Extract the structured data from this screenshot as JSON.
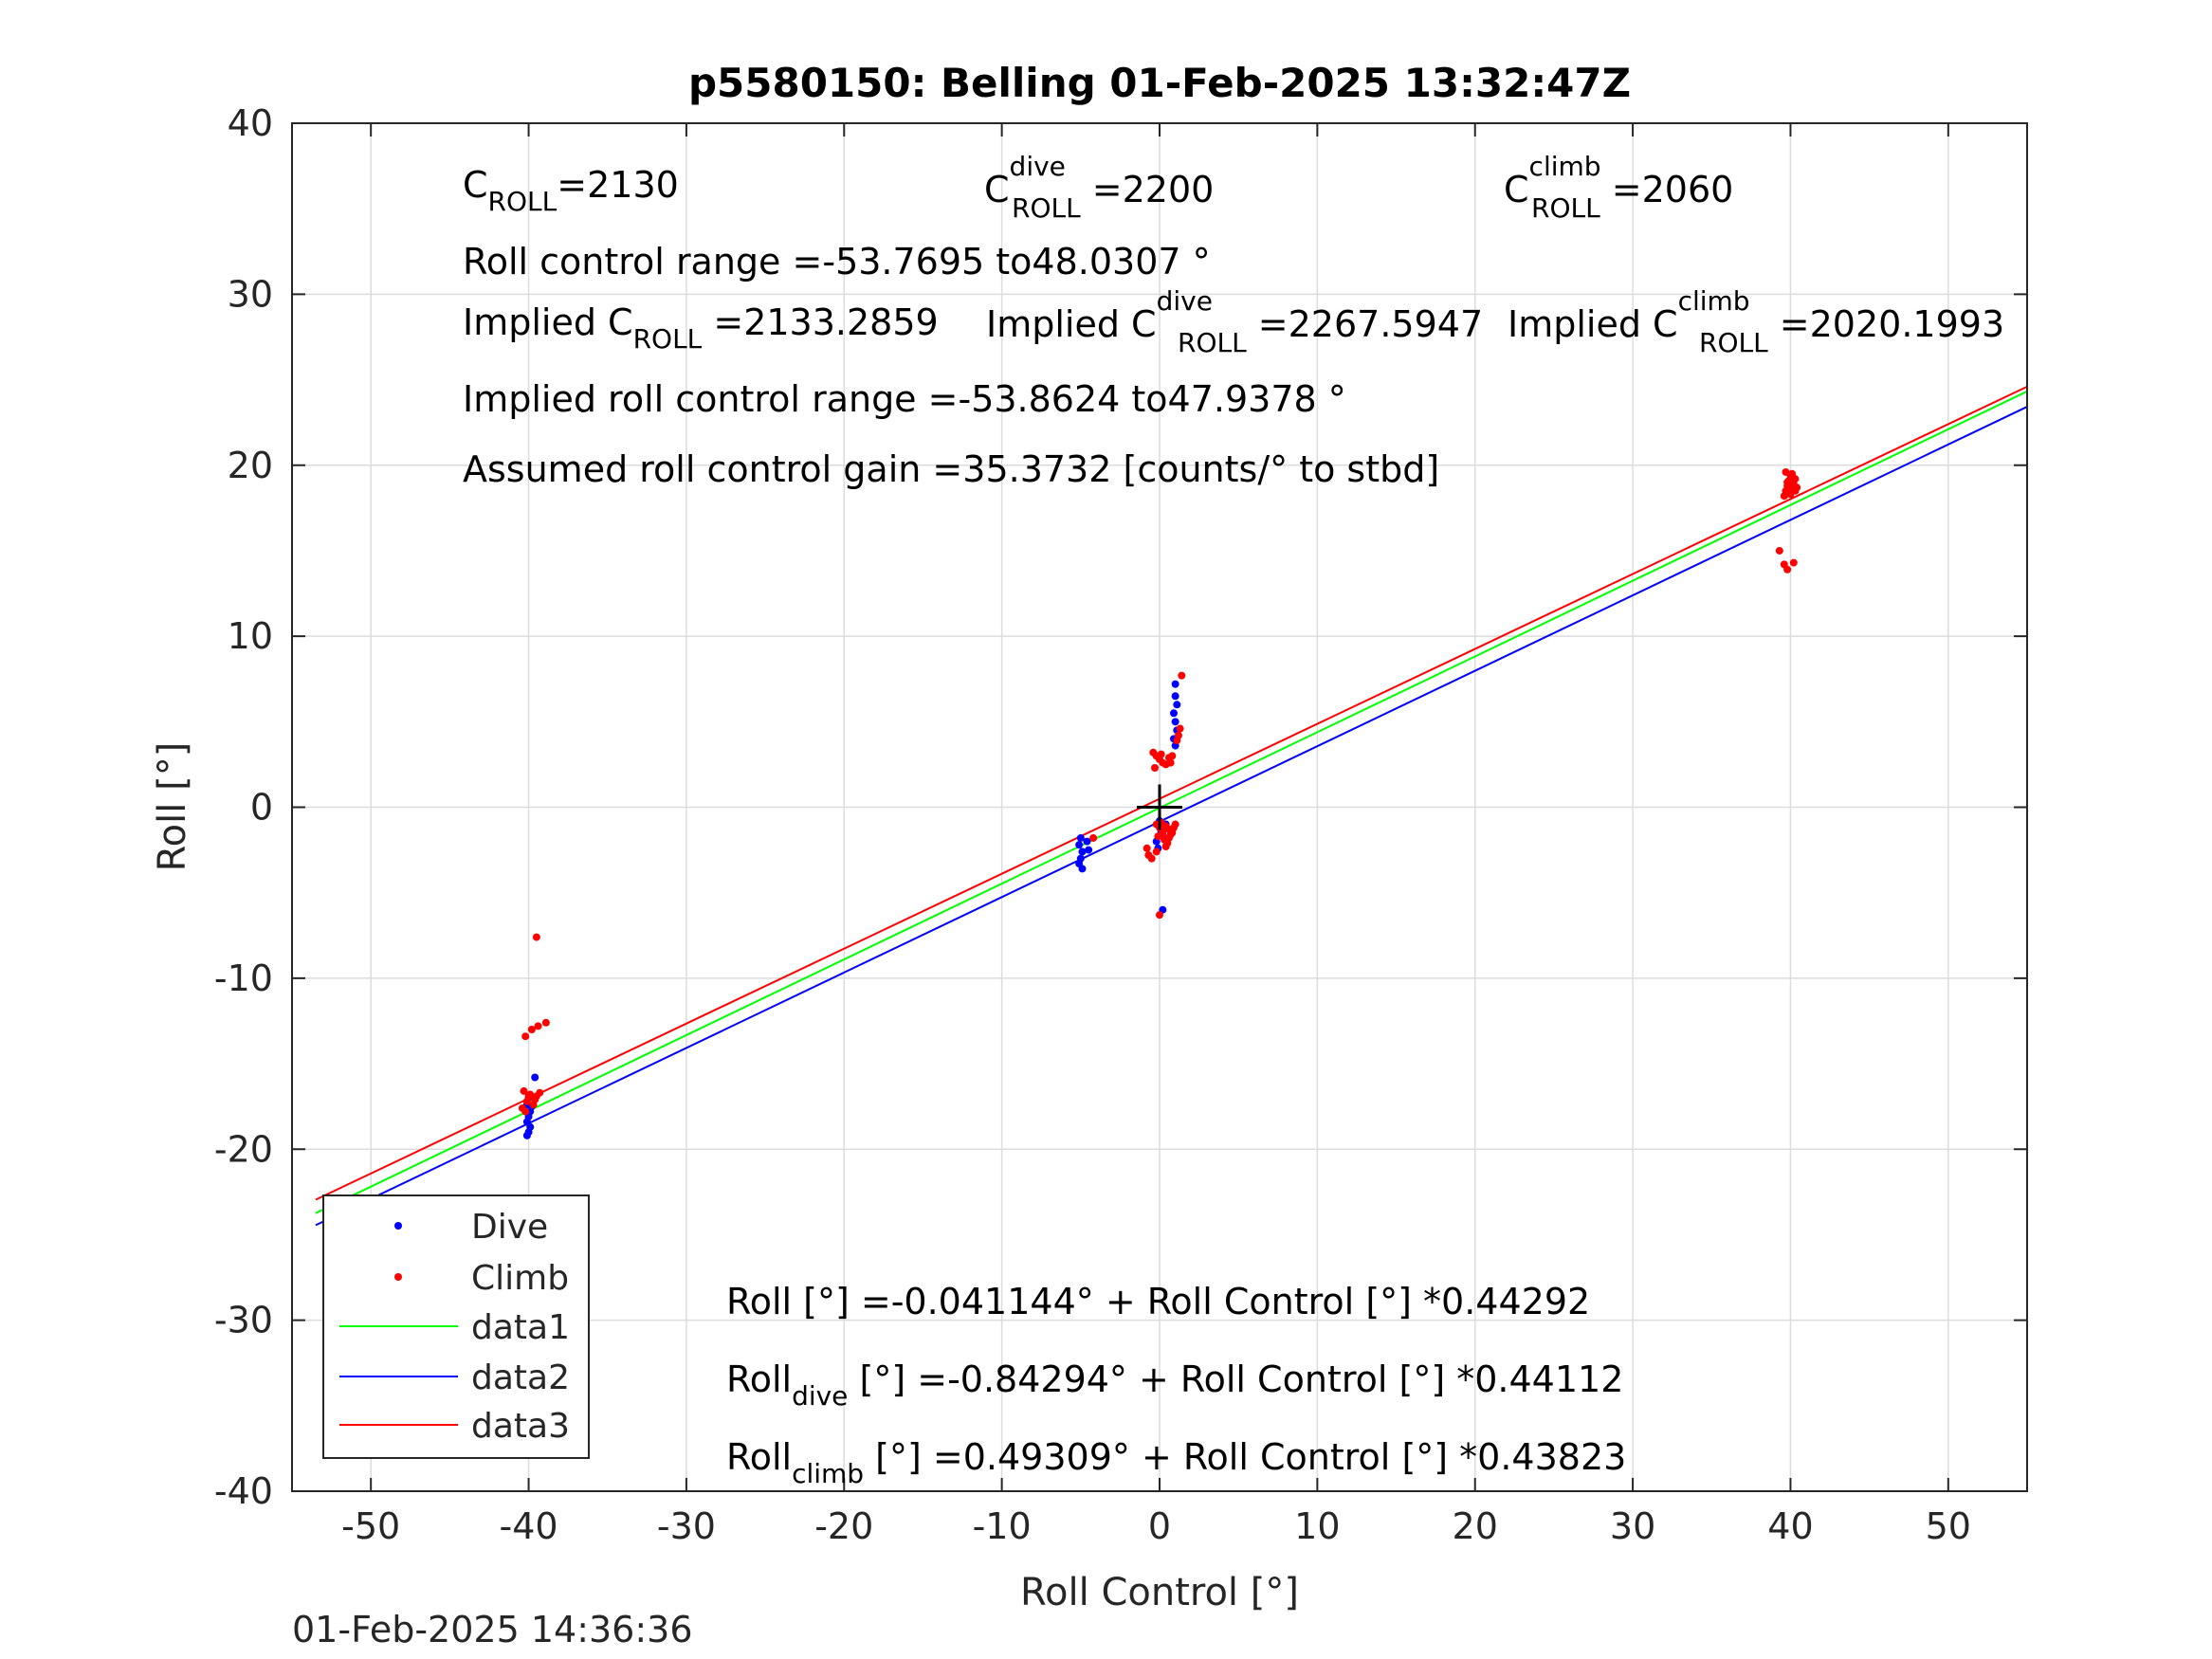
{
  "chart_data": {
    "type": "scatter",
    "title": "p5580150: Belling 01-Feb-2025 13:32:47Z",
    "xlabel": "Roll Control [°]",
    "ylabel": "Roll [°]",
    "xlim": [
      -55,
      55
    ],
    "ylim": [
      -40,
      40
    ],
    "xticks": [
      -50,
      -40,
      -30,
      -20,
      -10,
      0,
      10,
      20,
      30,
      40,
      50
    ],
    "yticks": [
      -40,
      -30,
      -20,
      -10,
      0,
      10,
      20,
      30,
      40
    ],
    "grid": true,
    "legend_position": "bottom-left",
    "series": [
      {
        "name": "Dive",
        "kind": "points",
        "color": "#0000ff",
        "points": [
          [
            -40.0,
            -17.0
          ],
          [
            -40.1,
            -17.4
          ],
          [
            -39.9,
            -17.8
          ],
          [
            -40.0,
            -18.1
          ],
          [
            -40.1,
            -18.4
          ],
          [
            -39.9,
            -18.7
          ],
          [
            -40.0,
            -19.0
          ],
          [
            -40.1,
            -19.2
          ],
          [
            -39.6,
            -15.8
          ],
          [
            -39.8,
            -17.5
          ],
          [
            -5.0,
            -1.8
          ],
          [
            -5.1,
            -2.2
          ],
          [
            -4.9,
            -2.6
          ],
          [
            -5.0,
            -3.0
          ],
          [
            -5.1,
            -3.3
          ],
          [
            -4.9,
            -3.6
          ],
          [
            -4.5,
            -2.5
          ],
          [
            -4.6,
            -2.0
          ],
          [
            0.0,
            -0.8
          ],
          [
            0.1,
            -1.4
          ],
          [
            -0.2,
            -2.0
          ],
          [
            0.3,
            -1.8
          ],
          [
            0.2,
            -6.0
          ],
          [
            -0.1,
            -2.4
          ],
          [
            0.4,
            -1.0
          ],
          [
            1.0,
            7.2
          ],
          [
            1.0,
            6.5
          ],
          [
            1.1,
            6.0
          ],
          [
            0.9,
            5.5
          ],
          [
            1.0,
            5.0
          ],
          [
            1.1,
            4.5
          ],
          [
            0.9,
            4.0
          ],
          [
            1.0,
            3.6
          ]
        ]
      },
      {
        "name": "Climb",
        "kind": "points",
        "color": "#ff0000",
        "points": [
          [
            -39.5,
            -7.6
          ],
          [
            -39.8,
            -13.0
          ],
          [
            -39.4,
            -12.8
          ],
          [
            -38.9,
            -12.6
          ],
          [
            -40.2,
            -13.4
          ],
          [
            -40.3,
            -16.6
          ],
          [
            -39.9,
            -16.8
          ],
          [
            -39.5,
            -16.9
          ],
          [
            -40.1,
            -17.2
          ],
          [
            -39.7,
            -17.4
          ],
          [
            -40.4,
            -17.6
          ],
          [
            -39.3,
            -16.7
          ],
          [
            -40.0,
            -16.9
          ],
          [
            -39.6,
            -17.1
          ],
          [
            -40.2,
            -17.8
          ],
          [
            -4.2,
            -1.8
          ],
          [
            -0.8,
            -2.4
          ],
          [
            -0.7,
            -2.8
          ],
          [
            -0.5,
            -3.0
          ],
          [
            -0.2,
            -2.6
          ],
          [
            0.0,
            -6.3
          ],
          [
            -0.4,
            3.2
          ],
          [
            -0.2,
            3.0
          ],
          [
            0.0,
            2.8
          ],
          [
            0.2,
            2.6
          ],
          [
            0.4,
            2.5
          ],
          [
            -0.3,
            2.3
          ],
          [
            0.1,
            3.1
          ],
          [
            0.6,
            2.9
          ],
          [
            0.8,
            3.0
          ],
          [
            0.7,
            2.6
          ],
          [
            -0.2,
            -1.0
          ],
          [
            0.0,
            -1.2
          ],
          [
            0.2,
            -1.4
          ],
          [
            0.4,
            -1.1
          ],
          [
            0.6,
            -1.3
          ],
          [
            0.8,
            -1.5
          ],
          [
            -0.1,
            -1.7
          ],
          [
            0.3,
            -1.9
          ],
          [
            0.5,
            -2.1
          ],
          [
            0.7,
            -1.6
          ],
          [
            0.9,
            -1.2
          ],
          [
            1.0,
            -1.0
          ],
          [
            0.1,
            -0.9
          ],
          [
            0.4,
            -2.3
          ],
          [
            0.6,
            -1.8
          ],
          [
            0.2,
            -1.6
          ],
          [
            1.2,
            4.2
          ],
          [
            1.3,
            4.6
          ],
          [
            1.1,
            3.9
          ],
          [
            1.4,
            7.7
          ],
          [
            39.3,
            15.0
          ],
          [
            39.6,
            14.2
          ],
          [
            39.8,
            13.9
          ],
          [
            40.2,
            14.3
          ],
          [
            39.6,
            18.2
          ],
          [
            39.7,
            18.5
          ],
          [
            39.8,
            18.8
          ],
          [
            39.9,
            19.1
          ],
          [
            40.0,
            19.4
          ],
          [
            40.1,
            18.6
          ],
          [
            40.2,
            18.9
          ],
          [
            40.3,
            19.2
          ],
          [
            39.7,
            19.6
          ],
          [
            40.0,
            18.3
          ],
          [
            40.4,
            18.7
          ],
          [
            39.8,
            19.0
          ],
          [
            40.1,
            19.5
          ],
          [
            39.9,
            18.4
          ],
          [
            40.3,
            18.5
          ]
        ]
      },
      {
        "name": "data1",
        "kind": "line",
        "color": "#00ff00",
        "intercept": -0.041144,
        "slope": 0.44292
      },
      {
        "name": "data2",
        "kind": "line",
        "color": "#0000ff",
        "intercept": -0.84294,
        "slope": 0.44112
      },
      {
        "name": "data3",
        "kind": "line",
        "color": "#ff0000",
        "intercept": 0.49309,
        "slope": 0.43823
      }
    ],
    "marker": {
      "type": "plus",
      "color": "#000000",
      "x": 0,
      "y": 0
    },
    "annotations": {
      "c_roll": {
        "base": "C",
        "sub": "ROLL",
        "value": "=2130"
      },
      "c_roll_dive": {
        "base": "C",
        "sup": "dive",
        "sub": "ROLL",
        "value": " =2200"
      },
      "c_roll_climb": {
        "base": "C",
        "sup": "climb",
        "sub": "ROLL",
        "value": " =2060"
      },
      "range": "Roll control range =-53.7695 to48.0307 °",
      "implied_c_roll": {
        "base": "Implied C",
        "sub": "ROLL",
        "value": " =2133.2859"
      },
      "implied_c_roll_dive": {
        "base": "Implied C",
        "sup": "dive",
        "sub": "ROLL",
        "value": " =2267.5947"
      },
      "implied_c_roll_climb": {
        "base": "Implied C",
        "sup": "climb",
        "sub": "ROLL",
        "value": " =2020.1993"
      },
      "implied_range": "Implied roll control range =-53.8624 to47.9378 °",
      "gain": "Assumed roll control gain =35.3732 [counts/° to stbd]",
      "fit_all": {
        "base": "Roll",
        "value": " [°] =-0.041144° + Roll Control [°] *0.44292"
      },
      "fit_dive": {
        "base": "Roll",
        "sub": "dive",
        "value": " [°] =-0.84294° + Roll Control [°] *0.44112"
      },
      "fit_climb": {
        "base": "Roll",
        "sub": "climb",
        "value": " [°] =0.49309° + Roll Control [°] *0.43823"
      }
    }
  },
  "footer": {
    "timestamp": "01-Feb-2025 14:36:36"
  }
}
